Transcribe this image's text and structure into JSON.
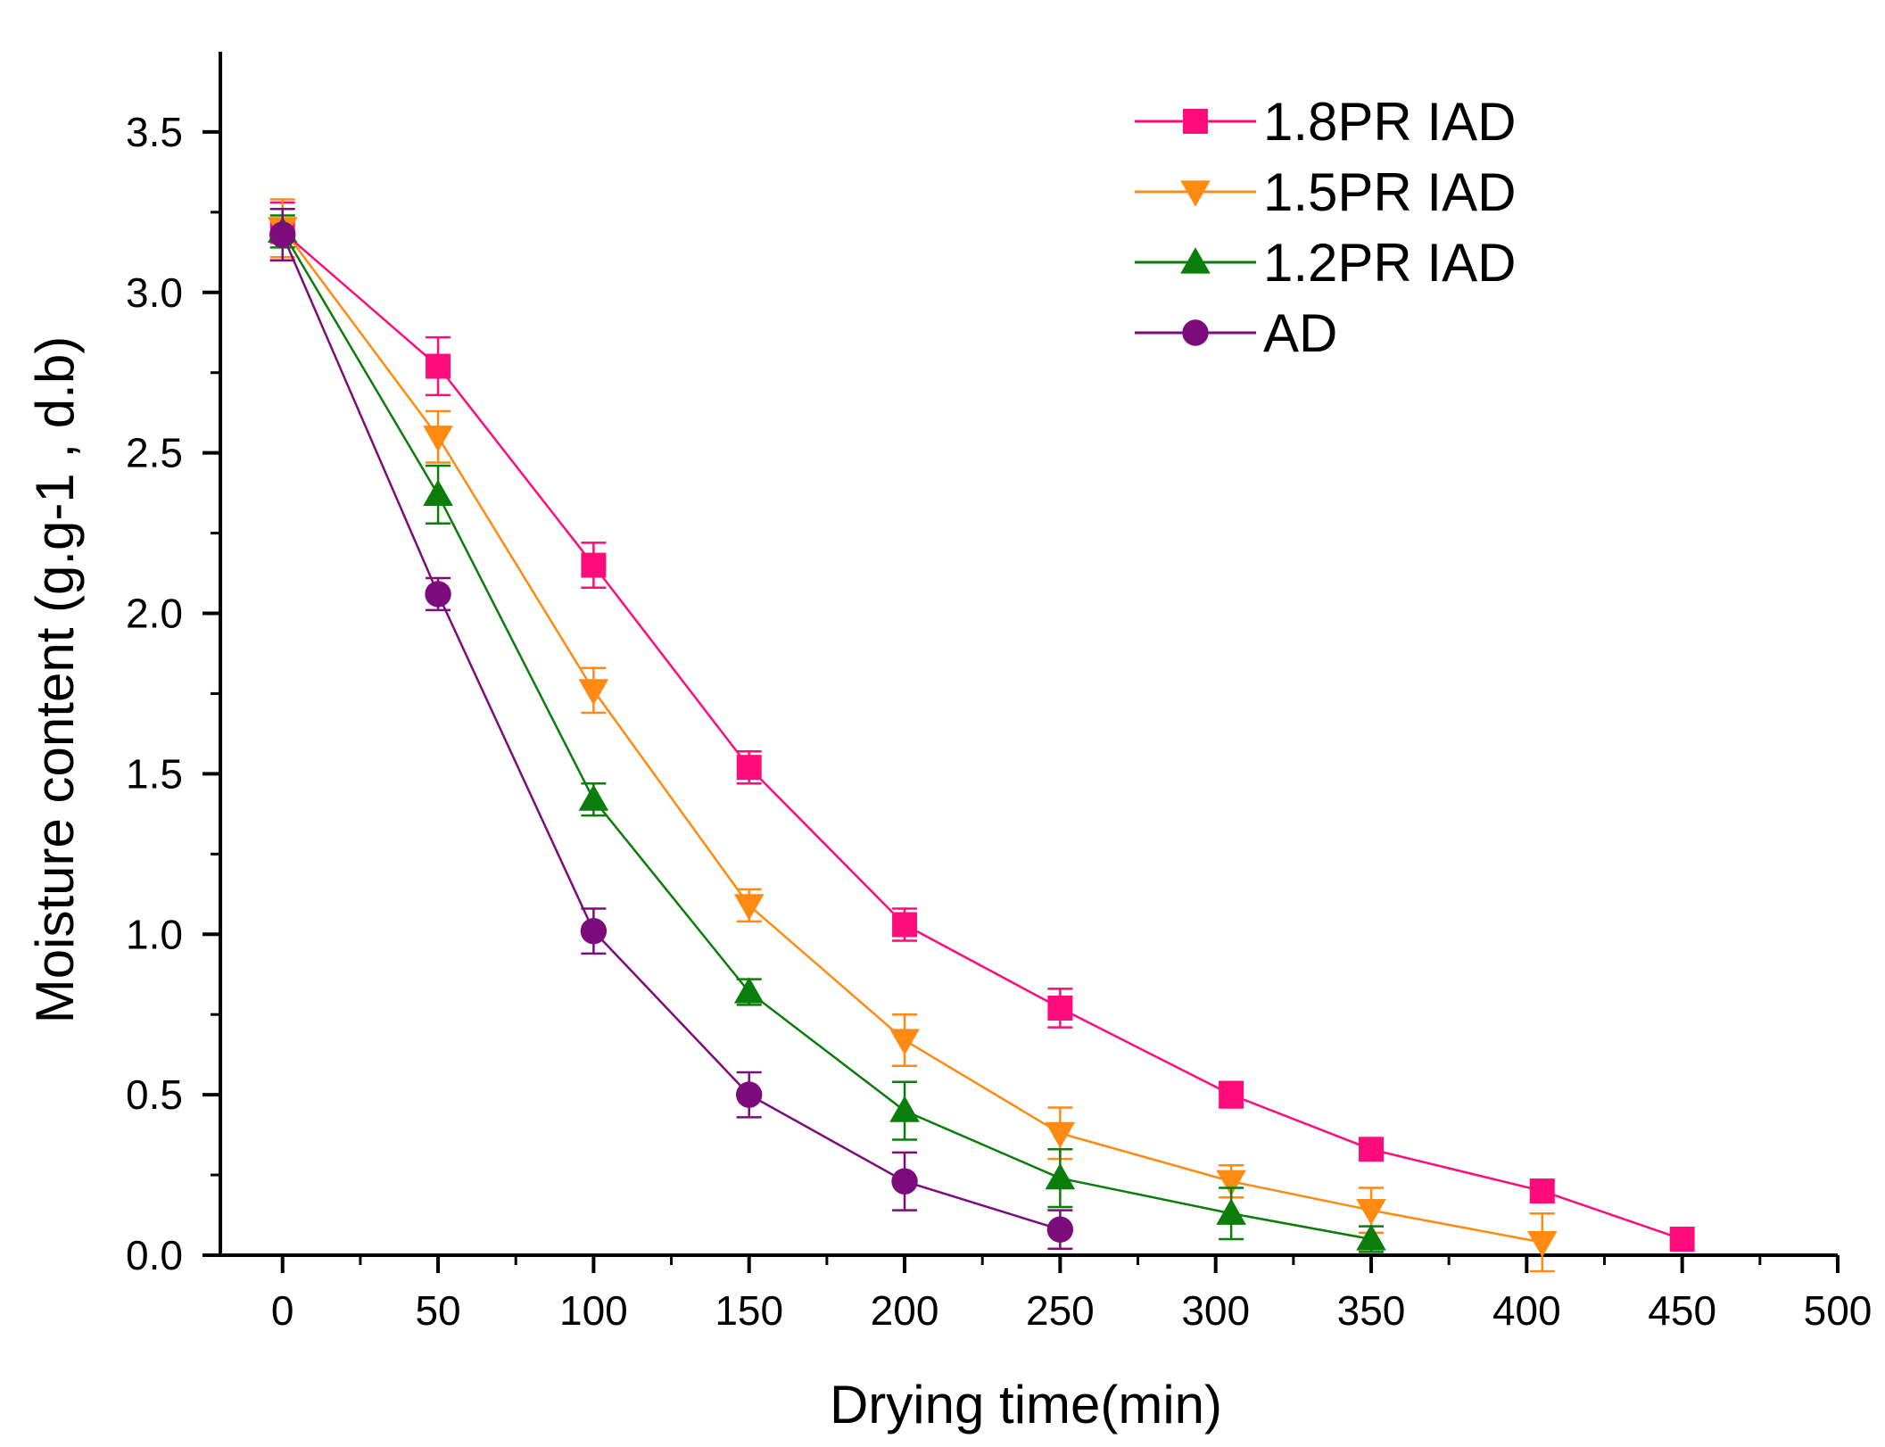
{
  "chart_data": {
    "type": "line",
    "title": "",
    "xlabel": "Drying time(min)",
    "ylabel": "Moisture content (g.g-1 , d.b)",
    "xlim": [
      -20,
      500
    ],
    "ylim": [
      0,
      3.75
    ],
    "xticks": [
      0,
      50,
      100,
      150,
      200,
      250,
      300,
      350,
      400,
      450,
      500
    ],
    "xtick_labels": [
      "0",
      "50",
      "100",
      "150",
      "200",
      "250",
      "300",
      "350",
      "400",
      "450",
      "500"
    ],
    "yticks": [
      0.0,
      0.5,
      1.0,
      1.5,
      2.0,
      2.5,
      3.0,
      3.5
    ],
    "ytick_labels": [
      "0.0",
      "0.5",
      "1.0",
      "1.5",
      "2.0",
      "2.5",
      "3.0",
      "3.5"
    ],
    "grid": false,
    "legend_position": "top-right",
    "series": [
      {
        "name": "1.8PR IAD",
        "color": "#ff0c7c",
        "marker": "square",
        "x": [
          0,
          50,
          100,
          150,
          200,
          250,
          305,
          350,
          405,
          450
        ],
        "y": [
          3.19,
          2.77,
          2.15,
          1.52,
          1.03,
          0.77,
          0.5,
          0.33,
          0.2,
          0.05
        ],
        "err": [
          0.09,
          0.09,
          0.07,
          0.05,
          0.05,
          0.06,
          0.04,
          0.03,
          0.03,
          0.0
        ]
      },
      {
        "name": "1.5PR IAD",
        "color": "#ff8a12",
        "marker": "triangle-down",
        "x": [
          0,
          50,
          100,
          150,
          200,
          250,
          305,
          350,
          405
        ],
        "y": [
          3.2,
          2.55,
          1.76,
          1.09,
          0.67,
          0.38,
          0.23,
          0.14,
          0.04
        ],
        "err": [
          0.09,
          0.08,
          0.07,
          0.05,
          0.08,
          0.08,
          0.05,
          0.07,
          0.09
        ]
      },
      {
        "name": "1.2PR IAD",
        "color": "#0a7d0a",
        "marker": "triangle-up",
        "x": [
          0,
          50,
          100,
          150,
          200,
          250,
          305,
          350
        ],
        "y": [
          3.19,
          2.37,
          1.42,
          0.82,
          0.45,
          0.24,
          0.13,
          0.05
        ],
        "err": [
          0.05,
          0.09,
          0.05,
          0.04,
          0.09,
          0.09,
          0.08,
          0.04
        ]
      },
      {
        "name": "AD",
        "color": "#7c0c7c",
        "marker": "circle",
        "x": [
          0,
          50,
          100,
          150,
          200,
          250
        ],
        "y": [
          3.18,
          2.06,
          1.01,
          0.5,
          0.23,
          0.08
        ],
        "err": [
          0.08,
          0.05,
          0.07,
          0.07,
          0.09,
          0.06
        ]
      }
    ]
  }
}
